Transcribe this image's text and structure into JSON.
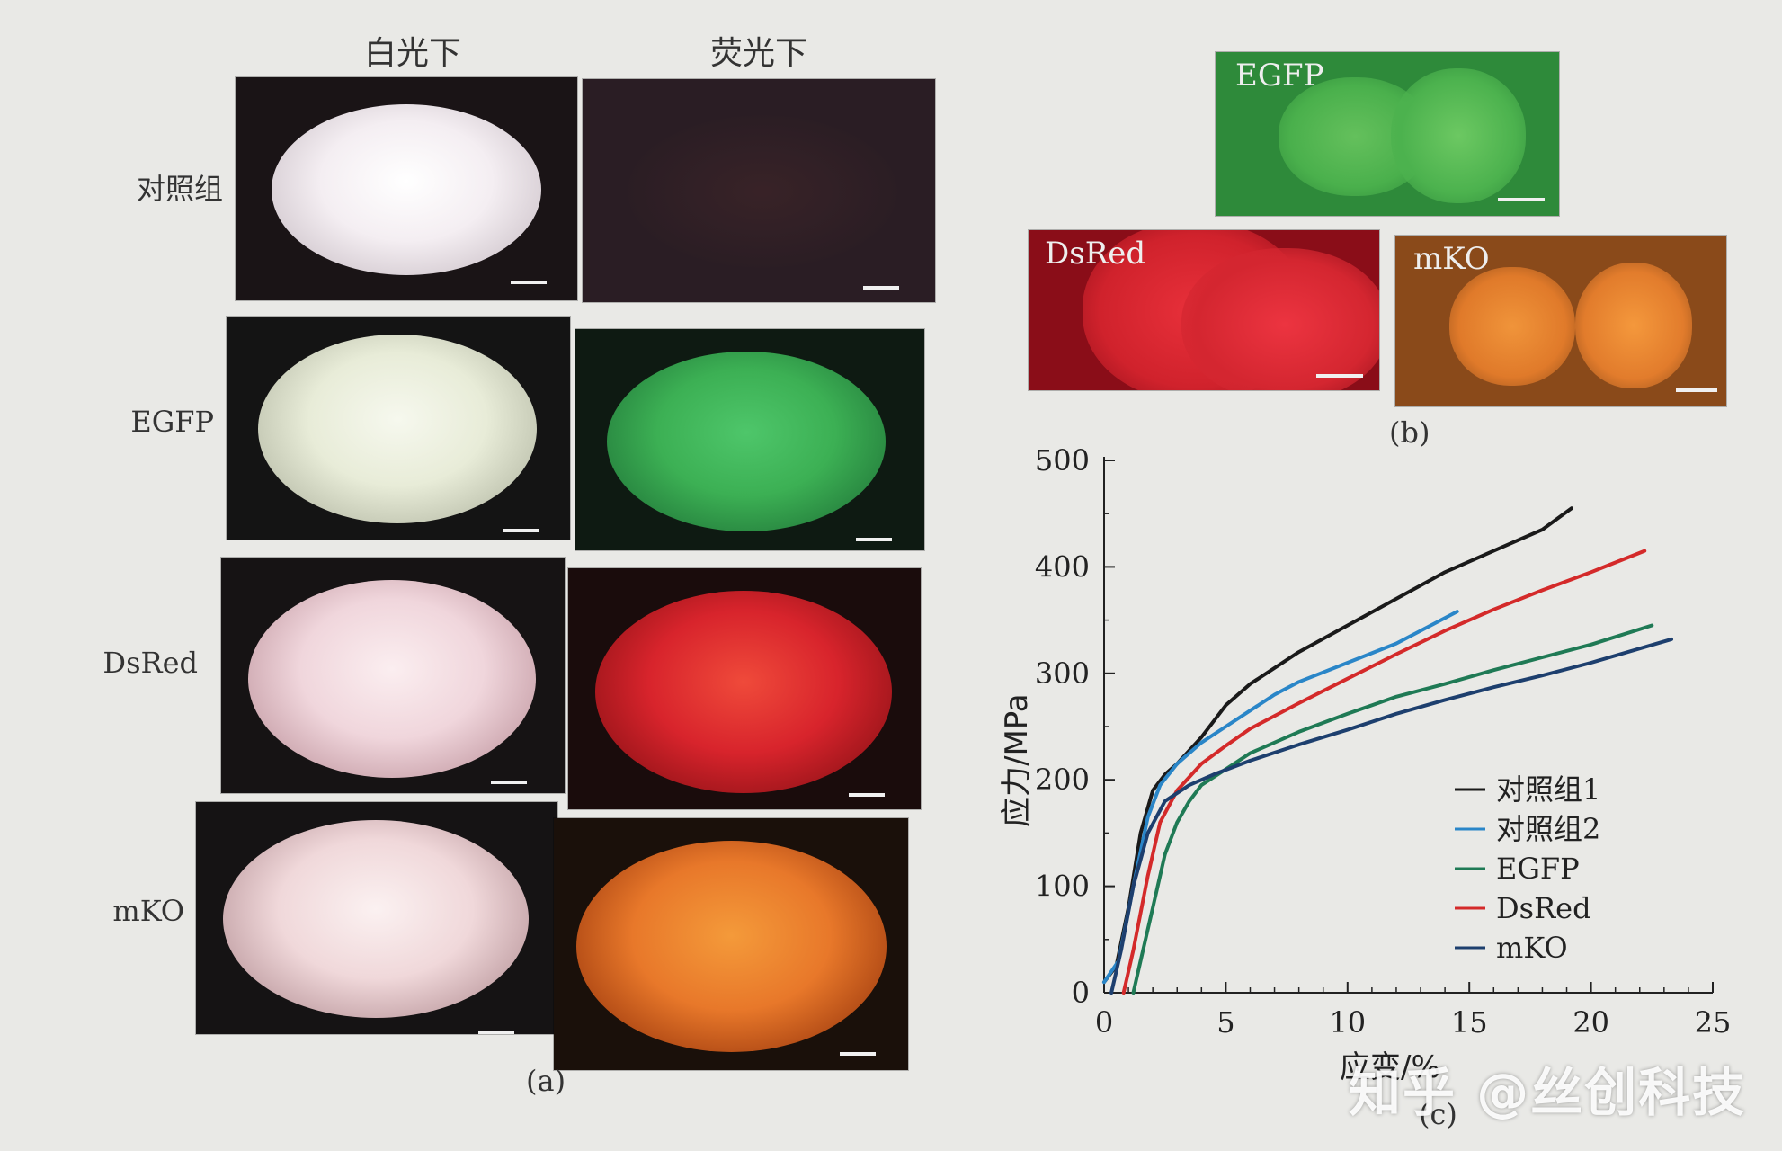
{
  "panel_a": {
    "column_headers": [
      "白光下",
      "荧光下"
    ],
    "row_labels": [
      "对照组",
      "EGFP",
      "DsRed",
      "mKO"
    ],
    "caption": "(a)"
  },
  "panel_b": {
    "labels": [
      "EGFP",
      "DsRed",
      "mKO"
    ],
    "caption": "(b)"
  },
  "chart_data": {
    "type": "line",
    "ylabel": "应力/MPa",
    "xlabel": "应变/%",
    "caption": "(c)",
    "xlim": [
      0,
      25
    ],
    "ylim": [
      0,
      500
    ],
    "xticks": [
      "0",
      "5",
      "10",
      "15",
      "20",
      "25"
    ],
    "yticks": [
      "0",
      "100",
      "200",
      "300",
      "400",
      "500"
    ],
    "legend_position": "lower-right",
    "series": [
      {
        "name": "对照组1",
        "color": "#1a1a1a",
        "points": [
          [
            0,
            10
          ],
          [
            0.5,
            25
          ],
          [
            1,
            80
          ],
          [
            1.5,
            150
          ],
          [
            2,
            190
          ],
          [
            2.5,
            205
          ],
          [
            3,
            215
          ],
          [
            4,
            240
          ],
          [
            5,
            270
          ],
          [
            6,
            290
          ],
          [
            8,
            320
          ],
          [
            10,
            345
          ],
          [
            12,
            370
          ],
          [
            14,
            395
          ],
          [
            16,
            415
          ],
          [
            18,
            435
          ],
          [
            19.2,
            455
          ]
        ]
      },
      {
        "name": "对照组2",
        "color": "#2a86c8",
        "points": [
          [
            0,
            10
          ],
          [
            0.6,
            30
          ],
          [
            1.2,
            100
          ],
          [
            1.8,
            165
          ],
          [
            2.3,
            195
          ],
          [
            3,
            215
          ],
          [
            4,
            235
          ],
          [
            5,
            250
          ],
          [
            6,
            265
          ],
          [
            7,
            280
          ],
          [
            8,
            292
          ],
          [
            10,
            310
          ],
          [
            12,
            328
          ],
          [
            14.5,
            358
          ]
        ]
      },
      {
        "name": "EGFP",
        "color": "#1f7a55",
        "points": [
          [
            1.2,
            0
          ],
          [
            1.5,
            30
          ],
          [
            2,
            80
          ],
          [
            2.5,
            130
          ],
          [
            3,
            160
          ],
          [
            3.5,
            180
          ],
          [
            4,
            195
          ],
          [
            5,
            210
          ],
          [
            6,
            225
          ],
          [
            8,
            245
          ],
          [
            10,
            262
          ],
          [
            12,
            278
          ],
          [
            14,
            290
          ],
          [
            16,
            303
          ],
          [
            18,
            315
          ],
          [
            20,
            327
          ],
          [
            22.5,
            345
          ]
        ]
      },
      {
        "name": "DsRed",
        "color": "#d42a2a",
        "points": [
          [
            0.8,
            0
          ],
          [
            1.2,
            40
          ],
          [
            1.8,
            110
          ],
          [
            2.3,
            160
          ],
          [
            3,
            190
          ],
          [
            4,
            215
          ],
          [
            5,
            232
          ],
          [
            6,
            248
          ],
          [
            8,
            272
          ],
          [
            10,
            295
          ],
          [
            12,
            318
          ],
          [
            14,
            340
          ],
          [
            16,
            360
          ],
          [
            18,
            378
          ],
          [
            20,
            395
          ],
          [
            22.2,
            415
          ]
        ]
      },
      {
        "name": "mKO",
        "color": "#1d3f6e",
        "points": [
          [
            0.3,
            0
          ],
          [
            0.7,
            40
          ],
          [
            1.2,
            100
          ],
          [
            1.8,
            150
          ],
          [
            2.5,
            180
          ],
          [
            3.5,
            195
          ],
          [
            4.5,
            205
          ],
          [
            6,
            218
          ],
          [
            8,
            233
          ],
          [
            10,
            247
          ],
          [
            12,
            262
          ],
          [
            14,
            275
          ],
          [
            16,
            287
          ],
          [
            18,
            298
          ],
          [
            20,
            310
          ],
          [
            23.3,
            332
          ]
        ]
      }
    ]
  },
  "watermark": "知乎 @丝创科技",
  "colors": {
    "background": "#e9e9e6",
    "egfp_green": "#3cb054",
    "dsred_red": "#d8242c",
    "mko_orange": "#e8782a"
  }
}
